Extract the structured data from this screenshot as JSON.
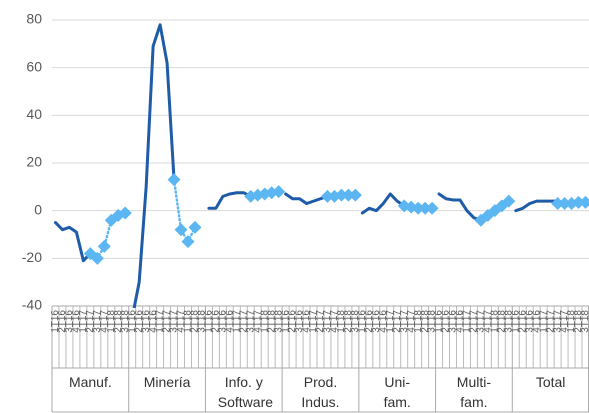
{
  "chart_data": {
    "type": "line",
    "ylim": [
      -40,
      80
    ],
    "yticks": [
      -40,
      -20,
      0,
      20,
      40,
      60,
      80
    ],
    "grid": true,
    "groups": [
      {
        "label": "Manuf.",
        "categories": [
          "1T16",
          "2T16",
          "3T16",
          "4T16",
          "1T17",
          "2T17",
          "3T17",
          "4T17",
          "1T18",
          "2T18",
          "3T18"
        ]
      },
      {
        "label": "Minería",
        "categories": [
          "1T16",
          "2T16",
          "3T16",
          "4T16",
          "1T17",
          "2T17",
          "3T17",
          "4T17",
          "1T18",
          "2T18",
          "3T18"
        ]
      },
      {
        "label": "Info. y Software",
        "categories": [
          "1T16",
          "2T16",
          "3T16",
          "4T16",
          "1T17",
          "2T17",
          "3T17",
          "4T17",
          "1T18",
          "2T18",
          "3T18"
        ]
      },
      {
        "label": "Prod. Indus.",
        "categories": [
          "1T16",
          "2T16",
          "3T16",
          "4T16",
          "1T17",
          "2T17",
          "3T17",
          "4T17",
          "1T18",
          "2T18",
          "3T18"
        ]
      },
      {
        "label": "Uni-fam.",
        "categories": [
          "1T16",
          "2T16",
          "3T16",
          "4T16",
          "1T17",
          "2T17",
          "3T17",
          "4T17",
          "1T18",
          "2T18",
          "3T18"
        ]
      },
      {
        "label": "Multi-fam.",
        "categories": [
          "1T16",
          "2T16",
          "3T16",
          "4T16",
          "1T17",
          "2T17",
          "3T17",
          "4T17",
          "1T18",
          "2T18",
          "3T18"
        ]
      },
      {
        "label": "Total",
        "categories": [
          "1T16",
          "2T16",
          "3T16",
          "4T16",
          "1T17",
          "2T17",
          "3T17",
          "4T17",
          "1T18",
          "2T18",
          "3T18"
        ]
      }
    ],
    "series": [
      {
        "color": "#1f5ca8",
        "style": "solid",
        "markers": false,
        "values": [
          -5,
          -8,
          -7,
          -9,
          -21,
          -18,
          null,
          null,
          null,
          null,
          null,
          -45,
          -30,
          10,
          69,
          78,
          62,
          13,
          null,
          null,
          null,
          null,
          1,
          1,
          6,
          7,
          7.5,
          7.5,
          6,
          null,
          null,
          null,
          null,
          7,
          5,
          5,
          3,
          4,
          5,
          6,
          null,
          null,
          null,
          null,
          -1,
          1,
          0,
          3,
          7,
          4,
          2,
          null,
          null,
          null,
          null,
          7,
          5,
          4.5,
          4.5,
          0,
          -3,
          -4,
          null,
          null,
          null,
          null,
          0,
          1,
          3,
          4,
          4,
          4,
          4,
          null,
          null,
          null,
          null
        ]
      },
      {
        "color": "#5cb6f2",
        "style": "dotted",
        "markers": true,
        "values": [
          null,
          null,
          null,
          null,
          null,
          -18,
          -20,
          -15,
          -4,
          -2,
          -1,
          null,
          null,
          null,
          null,
          null,
          null,
          13,
          -8,
          -13,
          -7,
          null,
          null,
          null,
          null,
          null,
          null,
          null,
          6,
          6.5,
          7,
          7.5,
          8,
          null,
          null,
          null,
          null,
          null,
          null,
          6,
          6,
          6.5,
          6.5,
          6.5,
          null,
          null,
          null,
          null,
          null,
          null,
          2,
          1.5,
          1,
          1,
          1,
          null,
          null,
          null,
          null,
          null,
          null,
          -4,
          -2,
          0,
          2,
          4,
          null,
          null,
          null,
          null,
          null,
          null,
          3,
          3,
          3,
          3.5,
          3.5
        ]
      }
    ]
  }
}
